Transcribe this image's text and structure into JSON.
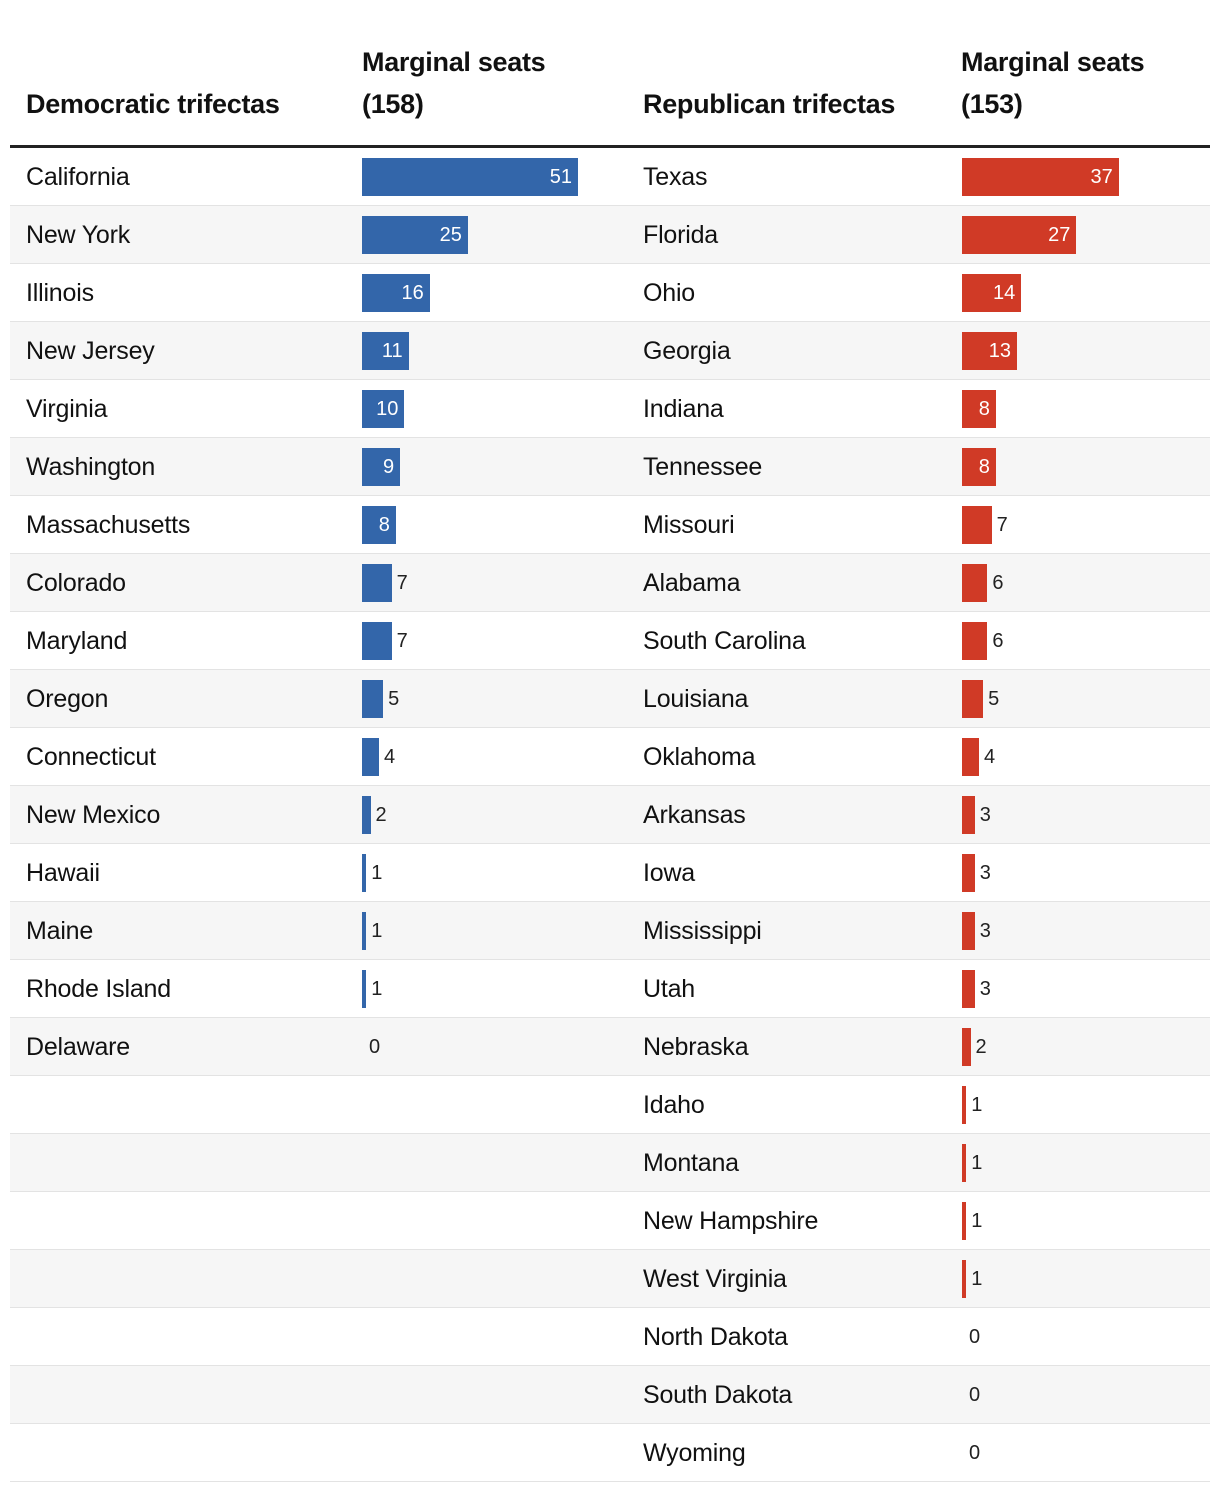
{
  "chart_data": {
    "type": "table",
    "title": "",
    "columns": [
      "Democratic trifectas",
      "Marginal seats (158)",
      "Republican trifectas",
      "Marginal seats (153)"
    ],
    "header": {
      "dem_state": "Democratic trifectas",
      "dem_seats": "Marginal seats (158)",
      "rep_state": "Republican trifectas",
      "rep_seats": "Marginal seats (153)"
    },
    "value_range": [
      0,
      51
    ],
    "colors": {
      "dem": "#3366aa",
      "rep": "#d03a26"
    },
    "series": [
      {
        "name": "Democratic trifectas",
        "total": 158,
        "categories": [
          "California",
          "New York",
          "Illinois",
          "New Jersey",
          "Virginia",
          "Washington",
          "Massachusetts",
          "Colorado",
          "Maryland",
          "Oregon",
          "Connecticut",
          "New Mexico",
          "Hawaii",
          "Maine",
          "Rhode Island",
          "Delaware"
        ],
        "values": [
          51,
          25,
          16,
          11,
          10,
          9,
          8,
          7,
          7,
          5,
          4,
          2,
          1,
          1,
          1,
          0
        ]
      },
      {
        "name": "Republican trifectas",
        "total": 153,
        "categories": [
          "Texas",
          "Florida",
          "Ohio",
          "Georgia",
          "Indiana",
          "Tennessee",
          "Missouri",
          "Alabama",
          "South Carolina",
          "Louisiana",
          "Oklahoma",
          "Arkansas",
          "Iowa",
          "Mississippi",
          "Utah",
          "Nebraska",
          "Idaho",
          "Montana",
          "New Hampshire",
          "West Virginia",
          "North Dakota",
          "South Dakota",
          "Wyoming"
        ],
        "values": [
          37,
          27,
          14,
          13,
          8,
          8,
          7,
          6,
          6,
          5,
          4,
          3,
          3,
          3,
          3,
          2,
          1,
          1,
          1,
          1,
          0,
          0,
          0
        ]
      }
    ]
  }
}
